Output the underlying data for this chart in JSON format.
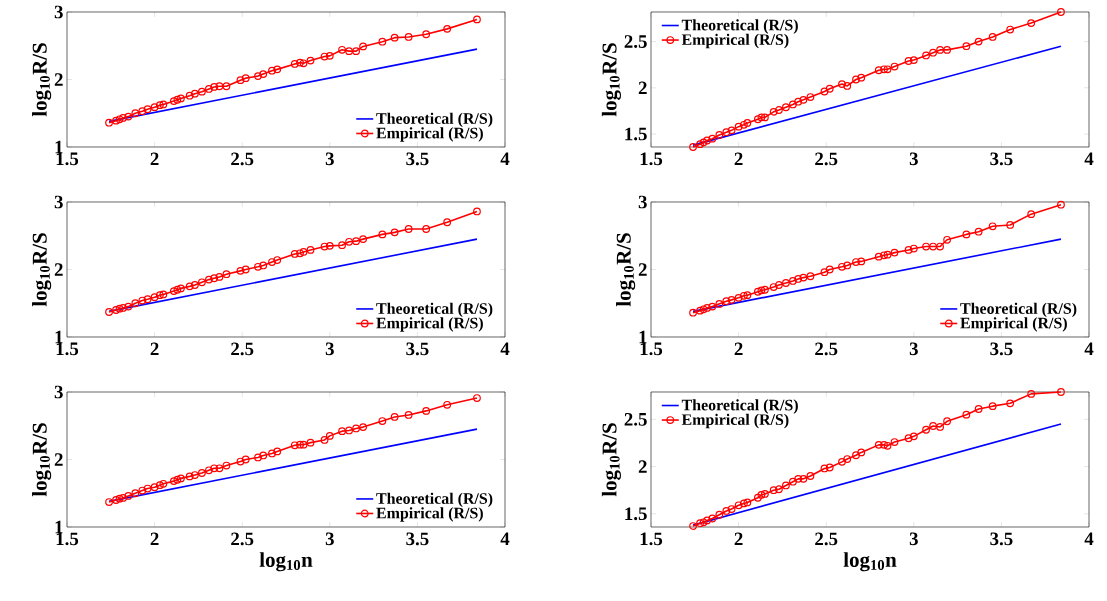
{
  "chart_data": [
    {
      "type": "line",
      "ylabel": "log$_{10}$R/S",
      "xlim": [
        1.5,
        4
      ],
      "ylim": [
        1,
        3
      ],
      "xticks": [
        1.5,
        2,
        2.5,
        3,
        3.5,
        4
      ],
      "yticks": [
        1,
        2,
        3
      ],
      "legend": "bottom right",
      "series": [
        {
          "name": "Theoretical (R/S)",
          "color": "#0000ff",
          "marker": "none",
          "line_style": "solid",
          "x": [
            1.74,
            3.84
          ],
          "values": [
            1.38,
            2.45
          ]
        },
        {
          "name": "Empirical (R/S)",
          "color": "#ff0000",
          "marker": "circle",
          "line_style": "solid",
          "x": [
            1.74,
            1.78,
            1.8,
            1.82,
            1.85,
            1.89,
            1.93,
            1.96,
            2.0,
            2.03,
            2.05,
            2.11,
            2.13,
            2.15,
            2.2,
            2.23,
            2.27,
            2.31,
            2.34,
            2.37,
            2.41,
            2.49,
            2.52,
            2.59,
            2.62,
            2.67,
            2.7,
            2.8,
            2.83,
            2.85,
            2.89,
            2.97,
            3.0,
            3.07,
            3.11,
            3.15,
            3.19,
            3.3,
            3.37,
            3.45,
            3.55,
            3.67,
            3.84
          ],
          "values": [
            1.36,
            1.39,
            1.41,
            1.43,
            1.45,
            1.5,
            1.53,
            1.56,
            1.59,
            1.62,
            1.63,
            1.68,
            1.7,
            1.72,
            1.76,
            1.79,
            1.82,
            1.86,
            1.89,
            1.9,
            1.9,
            1.99,
            2.02,
            2.05,
            2.08,
            2.13,
            2.15,
            2.23,
            2.25,
            2.24,
            2.28,
            2.34,
            2.35,
            2.44,
            2.42,
            2.42,
            2.49,
            2.56,
            2.62,
            2.63,
            2.67,
            2.75,
            2.89
          ]
        }
      ]
    },
    {
      "type": "line",
      "ylabel": "log$_{10}$R/S",
      "xlim": [
        1.5,
        4
      ],
      "ylim": [
        1.36,
        2.82
      ],
      "xticks": [
        1.5,
        2,
        2.5,
        3,
        3.5,
        4
      ],
      "yticks": [
        1.5,
        2,
        2.5
      ],
      "legend": "top left",
      "series": [
        {
          "name": "Theoretical (R/S)",
          "color": "#0000ff",
          "marker": "none",
          "line_style": "solid",
          "x": [
            1.74,
            3.84
          ],
          "values": [
            1.38,
            2.45
          ]
        },
        {
          "name": "Empirical (R/S)",
          "color": "#ff0000",
          "marker": "circle",
          "line_style": "solid",
          "x": [
            1.74,
            1.78,
            1.8,
            1.82,
            1.85,
            1.89,
            1.93,
            1.96,
            2.0,
            2.03,
            2.05,
            2.11,
            2.13,
            2.15,
            2.2,
            2.23,
            2.27,
            2.31,
            2.34,
            2.37,
            2.41,
            2.49,
            2.52,
            2.59,
            2.62,
            2.67,
            2.7,
            2.8,
            2.83,
            2.85,
            2.89,
            2.97,
            3.0,
            3.07,
            3.11,
            3.15,
            3.19,
            3.3,
            3.37,
            3.45,
            3.55,
            3.67,
            3.84
          ],
          "values": [
            1.36,
            1.39,
            1.41,
            1.43,
            1.45,
            1.49,
            1.52,
            1.54,
            1.58,
            1.6,
            1.62,
            1.66,
            1.68,
            1.68,
            1.74,
            1.76,
            1.79,
            1.82,
            1.85,
            1.87,
            1.9,
            1.96,
            1.99,
            2.04,
            2.02,
            2.09,
            2.11,
            2.19,
            2.2,
            2.2,
            2.23,
            2.29,
            2.3,
            2.35,
            2.38,
            2.41,
            2.41,
            2.45,
            2.5,
            2.55,
            2.63,
            2.7,
            2.82
          ]
        }
      ]
    },
    {
      "type": "line",
      "ylabel": "log$_{10}$R/S",
      "xlim": [
        1.5,
        4
      ],
      "ylim": [
        1,
        3
      ],
      "xticks": [
        1.5,
        2,
        2.5,
        3,
        3.5,
        4
      ],
      "yticks": [
        1,
        2,
        3
      ],
      "legend": "bottom right",
      "series": [
        {
          "name": "Theoretical (R/S)",
          "color": "#0000ff",
          "marker": "none",
          "line_style": "solid",
          "x": [
            1.74,
            3.84
          ],
          "values": [
            1.38,
            2.45
          ]
        },
        {
          "name": "Empirical (R/S)",
          "color": "#ff0000",
          "marker": "circle",
          "line_style": "solid",
          "x": [
            1.74,
            1.78,
            1.8,
            1.82,
            1.85,
            1.89,
            1.93,
            1.96,
            2.0,
            2.03,
            2.05,
            2.11,
            2.13,
            2.15,
            2.2,
            2.23,
            2.27,
            2.31,
            2.34,
            2.37,
            2.41,
            2.49,
            2.52,
            2.59,
            2.62,
            2.67,
            2.7,
            2.8,
            2.83,
            2.85,
            2.89,
            2.97,
            3.0,
            3.07,
            3.11,
            3.15,
            3.19,
            3.3,
            3.37,
            3.45,
            3.55,
            3.67,
            3.84
          ],
          "values": [
            1.37,
            1.4,
            1.42,
            1.43,
            1.45,
            1.5,
            1.54,
            1.56,
            1.59,
            1.62,
            1.63,
            1.68,
            1.7,
            1.72,
            1.75,
            1.77,
            1.81,
            1.85,
            1.87,
            1.89,
            1.93,
            1.98,
            2.0,
            2.04,
            2.06,
            2.11,
            2.14,
            2.23,
            2.24,
            2.26,
            2.29,
            2.34,
            2.35,
            2.36,
            2.41,
            2.42,
            2.45,
            2.52,
            2.55,
            2.6,
            2.6,
            2.7,
            2.86
          ]
        }
      ]
    },
    {
      "type": "line",
      "ylabel": "log$_{10}$R/S",
      "xlim": [
        1.5,
        4
      ],
      "ylim": [
        1,
        3
      ],
      "xticks": [
        1.5,
        2,
        2.5,
        3,
        3.5,
        4
      ],
      "yticks": [
        1,
        2,
        3
      ],
      "legend": "bottom right",
      "series": [
        {
          "name": "Theoretical (R/S)",
          "color": "#0000ff",
          "marker": "none",
          "line_style": "solid",
          "x": [
            1.74,
            3.84
          ],
          "values": [
            1.38,
            2.45
          ]
        },
        {
          "name": "Empirical (R/S)",
          "color": "#ff0000",
          "marker": "circle",
          "line_style": "solid",
          "x": [
            1.74,
            1.78,
            1.8,
            1.82,
            1.85,
            1.89,
            1.93,
            1.96,
            2.0,
            2.03,
            2.05,
            2.11,
            2.13,
            2.15,
            2.2,
            2.23,
            2.27,
            2.31,
            2.34,
            2.37,
            2.41,
            2.49,
            2.52,
            2.59,
            2.62,
            2.67,
            2.7,
            2.8,
            2.83,
            2.85,
            2.89,
            2.97,
            3.0,
            3.07,
            3.11,
            3.15,
            3.19,
            3.3,
            3.37,
            3.45,
            3.55,
            3.67,
            3.84
          ],
          "values": [
            1.36,
            1.39,
            1.41,
            1.43,
            1.45,
            1.49,
            1.53,
            1.55,
            1.58,
            1.61,
            1.62,
            1.67,
            1.69,
            1.7,
            1.74,
            1.77,
            1.8,
            1.83,
            1.86,
            1.88,
            1.9,
            1.96,
            2.0,
            2.04,
            2.06,
            2.11,
            2.12,
            2.19,
            2.21,
            2.22,
            2.25,
            2.29,
            2.31,
            2.34,
            2.34,
            2.34,
            2.44,
            2.52,
            2.56,
            2.64,
            2.66,
            2.82,
            2.96
          ]
        }
      ]
    },
    {
      "type": "line",
      "xlabel": "log$_{10}$n",
      "ylabel": "log$_{10}$R/S",
      "xlim": [
        1.5,
        4
      ],
      "ylim": [
        1,
        3
      ],
      "xticks": [
        1.5,
        2,
        2.5,
        3,
        3.5,
        4
      ],
      "yticks": [
        1,
        2,
        3
      ],
      "legend": "bottom right",
      "series": [
        {
          "name": "Theoretical (R/S)",
          "color": "#0000ff",
          "marker": "none",
          "line_style": "solid",
          "x": [
            1.74,
            3.84
          ],
          "values": [
            1.38,
            2.45
          ]
        },
        {
          "name": "Empirical (R/S)",
          "color": "#ff0000",
          "marker": "circle",
          "line_style": "solid",
          "x": [
            1.74,
            1.78,
            1.8,
            1.82,
            1.85,
            1.89,
            1.93,
            1.96,
            2.0,
            2.03,
            2.05,
            2.11,
            2.13,
            2.15,
            2.2,
            2.23,
            2.27,
            2.31,
            2.34,
            2.37,
            2.41,
            2.49,
            2.52,
            2.59,
            2.62,
            2.67,
            2.7,
            2.8,
            2.83,
            2.85,
            2.89,
            2.97,
            3.0,
            3.07,
            3.11,
            3.15,
            3.19,
            3.3,
            3.37,
            3.45,
            3.55,
            3.67,
            3.84
          ],
          "values": [
            1.37,
            1.4,
            1.42,
            1.43,
            1.46,
            1.5,
            1.54,
            1.57,
            1.59,
            1.62,
            1.64,
            1.68,
            1.7,
            1.72,
            1.75,
            1.77,
            1.8,
            1.84,
            1.87,
            1.87,
            1.91,
            1.97,
            2.0,
            2.03,
            2.06,
            2.09,
            2.12,
            2.21,
            2.22,
            2.22,
            2.25,
            2.29,
            2.35,
            2.42,
            2.43,
            2.46,
            2.48,
            2.57,
            2.63,
            2.66,
            2.72,
            2.81,
            2.91
          ]
        }
      ]
    },
    {
      "type": "line",
      "xlabel": "log$_{10}$n",
      "ylabel": "log$_{10}$R/S",
      "xlim": [
        1.5,
        4
      ],
      "ylim": [
        1.36,
        2.79
      ],
      "xticks": [
        1.5,
        2,
        2.5,
        3,
        3.5,
        4
      ],
      "yticks": [
        1.5,
        2,
        2.5
      ],
      "legend": "top left",
      "series": [
        {
          "name": "Theoretical (R/S)",
          "color": "#0000ff",
          "marker": "none",
          "line_style": "solid",
          "x": [
            1.74,
            3.84
          ],
          "values": [
            1.38,
            2.45
          ]
        },
        {
          "name": "Empirical (R/S)",
          "color": "#ff0000",
          "marker": "circle",
          "line_style": "solid",
          "x": [
            1.74,
            1.78,
            1.8,
            1.82,
            1.85,
            1.89,
            1.93,
            1.96,
            2.0,
            2.03,
            2.05,
            2.11,
            2.13,
            2.15,
            2.2,
            2.23,
            2.27,
            2.31,
            2.34,
            2.37,
            2.41,
            2.49,
            2.52,
            2.59,
            2.62,
            2.67,
            2.7,
            2.8,
            2.83,
            2.85,
            2.89,
            2.97,
            3.0,
            3.07,
            3.11,
            3.15,
            3.19,
            3.3,
            3.37,
            3.45,
            3.55,
            3.67,
            3.84
          ],
          "values": [
            1.37,
            1.4,
            1.41,
            1.43,
            1.45,
            1.49,
            1.53,
            1.55,
            1.59,
            1.61,
            1.62,
            1.67,
            1.7,
            1.71,
            1.75,
            1.76,
            1.8,
            1.84,
            1.87,
            1.87,
            1.9,
            1.98,
            1.99,
            2.05,
            2.08,
            2.12,
            2.15,
            2.23,
            2.23,
            2.22,
            2.26,
            2.3,
            2.32,
            2.39,
            2.43,
            2.42,
            2.48,
            2.55,
            2.61,
            2.64,
            2.67,
            2.77,
            2.79
          ]
        }
      ]
    }
  ]
}
